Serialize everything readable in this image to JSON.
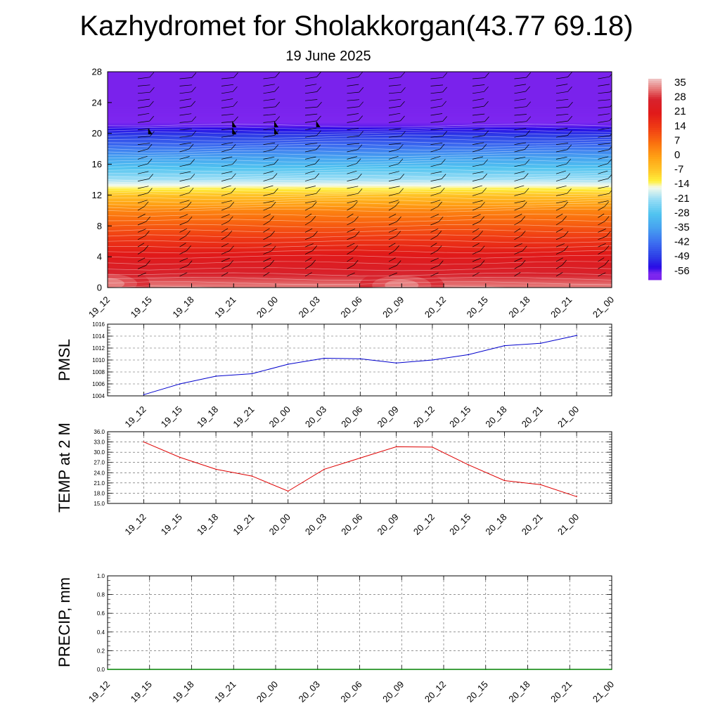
{
  "page": {
    "title": "Kazhydromet for Sholakkorgan(43.77 69.18)",
    "subtitle": "19 June 2025"
  },
  "time_labels": [
    "19_12",
    "19_15",
    "19_18",
    "19_21",
    "20_00",
    "20_03",
    "20_06",
    "20_09",
    "20_12",
    "20_15",
    "20_18",
    "20_21",
    "21_00"
  ],
  "colors": {
    "pmsl_line": "#0000cc",
    "temp_line": "#dd0000",
    "precip_line": "#008000",
    "grid": "#555555"
  },
  "chart_data": [
    {
      "id": "cross_section",
      "type": "heatmap",
      "title": "",
      "xlabel": "",
      "ylabel": "",
      "ylim": [
        0,
        28
      ],
      "y_ticks": [
        "0",
        "4",
        "8",
        "12",
        "16",
        "20",
        "24",
        "28"
      ],
      "colorbar_labels": [
        "35",
        "28",
        "21",
        "14",
        "7",
        "0",
        "-7",
        "-14",
        "-21",
        "-28",
        "-35",
        "-42",
        "-49",
        "-56"
      ],
      "colorbar_range": [
        -60,
        38
      ],
      "value_profile_height_km": [
        0,
        2,
        4,
        6,
        8,
        10,
        12,
        13,
        14,
        16,
        18,
        20,
        21,
        22,
        24,
        28
      ],
      "value_profile_temp": [
        34,
        27,
        22,
        16,
        10,
        4,
        -6,
        -13,
        -20,
        -30,
        -40,
        -50,
        -56,
        -58,
        -60,
        -60
      ],
      "hot_spots": [
        {
          "time": "19_12",
          "height_km": 0.5,
          "value": 33
        },
        {
          "time": "20_09",
          "height_km": 0.3,
          "value": 30
        }
      ],
      "wind_flag_positions_time": [
        "19_15",
        "19_21",
        "20_00",
        "20_03"
      ]
    },
    {
      "id": "pmsl",
      "type": "line",
      "ylabel": "PMSL",
      "ylim": [
        1004,
        1016
      ],
      "y_ticks": [
        "1004",
        "1006",
        "1008",
        "1010",
        "1012",
        "1014",
        "1016"
      ],
      "x": [
        "19_12",
        "19_15",
        "19_18",
        "19_21",
        "20_00",
        "20_03",
        "20_06",
        "20_09",
        "20_12",
        "20_15",
        "20_18",
        "20_21",
        "21_00"
      ],
      "values": [
        1004.2,
        1006.0,
        1007.3,
        1007.7,
        1009.3,
        1010.3,
        1010.2,
        1009.5,
        1010.0,
        1010.9,
        1012.4,
        1012.8,
        1014.1
      ]
    },
    {
      "id": "temp2m",
      "type": "line",
      "ylabel": "TEMP at 2 M",
      "ylim": [
        15,
        36
      ],
      "y_ticks": [
        "15.0",
        "18.0",
        "21.0",
        "24.0",
        "27.0",
        "30.0",
        "33.0",
        "36.0"
      ],
      "x": [
        "19_12",
        "19_15",
        "19_18",
        "19_21",
        "20_00",
        "20_03",
        "20_06",
        "20_09",
        "20_12",
        "20_15",
        "20_18",
        "20_21",
        "21_00"
      ],
      "values": [
        33.0,
        28.5,
        25.0,
        23.0,
        18.6,
        25.0,
        28.3,
        31.6,
        31.5,
        26.3,
        21.7,
        20.5,
        17.0
      ]
    },
    {
      "id": "precip",
      "type": "line",
      "ylabel": "PRECIP, mm",
      "ylim": [
        0,
        1
      ],
      "y_ticks": [
        "0.0",
        "0.2",
        "0.4",
        "0.6",
        "0.8",
        "1.0"
      ],
      "x": [
        "19_12",
        "19_15",
        "19_18",
        "19_21",
        "20_00",
        "20_03",
        "20_06",
        "20_09",
        "20_12",
        "20_15",
        "20_18",
        "20_21",
        "21_00"
      ],
      "values": [
        0,
        0,
        0,
        0,
        0,
        0,
        0,
        0,
        0,
        0,
        0,
        0,
        0
      ]
    }
  ]
}
